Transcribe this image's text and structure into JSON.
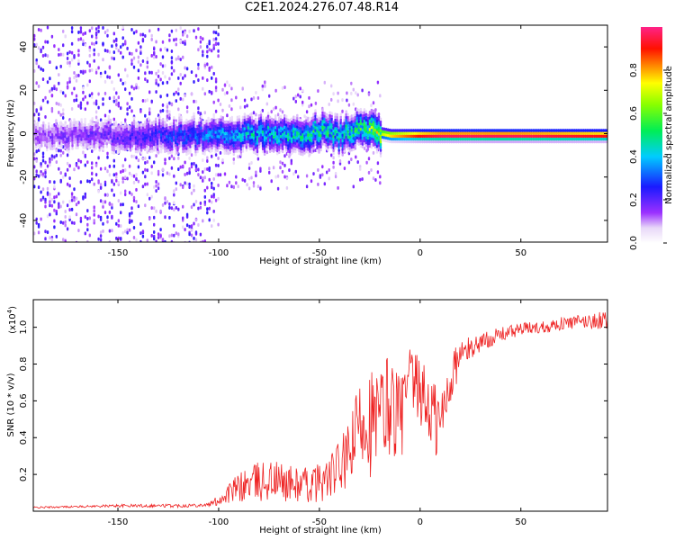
{
  "title": "C2E1.2024.276.07.48.R14",
  "colors": {
    "signal_line": "#ee2222",
    "frame": "#000000"
  },
  "chart_data": [
    {
      "type": "heatmap",
      "title": "C2E1.2024.276.07.48.R14",
      "xlabel": "Height of straight line (km)",
      "ylabel": "Frequency (Hz)",
      "xlim": [
        -192,
        93
      ],
      "ylim": [
        -50,
        50
      ],
      "x_ticks": [
        -150,
        -100,
        -50,
        0,
        50
      ],
      "y_ticks": [
        -40,
        -20,
        0,
        20,
        40
      ],
      "colorbar": {
        "label": "Normalized spectral amplitude",
        "range": [
          0,
          1
        ],
        "ticks": [
          "0.0",
          "0.2",
          "0.4",
          "0.6",
          "0.8"
        ],
        "colormap": "rainbow (white-violet-blue-cyan-green-yellow-red-pink)"
      },
      "ridge": {
        "description": "Dominant spectral line near 0 Hz; scattered noise for heights below -100 km, coherent line above -20 km",
        "x": [
          -190,
          -150,
          -100,
          -80,
          -60,
          -50,
          -40,
          -30,
          -20,
          -15,
          -10,
          -5,
          0,
          10,
          20,
          50,
          90
        ],
        "freq": [
          0,
          0,
          0,
          1,
          0,
          2,
          0,
          4,
          1,
          0,
          0,
          0,
          0,
          0,
          0,
          0,
          0
        ],
        "amplitude": [
          0.15,
          0.2,
          0.35,
          0.45,
          0.45,
          0.5,
          0.45,
          0.55,
          0.7,
          0.8,
          0.85,
          0.9,
          0.95,
          1.0,
          1.0,
          1.0,
          0.95
        ]
      }
    },
    {
      "type": "line",
      "xlabel": "Height of straight line (km)",
      "ylabel": "SNR (10 * v/v)",
      "scale_label_base": "(x10",
      "scale_label_exp": "4",
      "scale_label_close": ")",
      "xlim": [
        -192,
        93
      ],
      "ylim": [
        0,
        1.15
      ],
      "x_ticks": [
        -150,
        -100,
        -50,
        0,
        50
      ],
      "y_ticks": [
        "0.2",
        "0.4",
        "0.6",
        "0.8",
        "1.0"
      ],
      "series": [
        {
          "name": "SNR",
          "x": [
            -192,
            -170,
            -150,
            -120,
            -105,
            -100,
            -95,
            -85,
            -75,
            -65,
            -55,
            -45,
            -35,
            -28,
            -22,
            -15,
            -10,
            -5,
            0,
            5,
            10,
            15,
            20,
            30,
            40,
            50,
            60,
            70,
            80,
            93
          ],
          "values": [
            0.02,
            0.025,
            0.03,
            0.03,
            0.035,
            0.06,
            0.1,
            0.15,
            0.17,
            0.15,
            0.14,
            0.18,
            0.3,
            0.55,
            0.45,
            0.6,
            0.5,
            0.7,
            0.65,
            0.55,
            0.45,
            0.72,
            0.85,
            0.92,
            0.96,
            0.99,
            1.0,
            1.02,
            1.03,
            1.04
          ],
          "noise": [
            0.005,
            0.005,
            0.008,
            0.01,
            0.01,
            0.03,
            0.06,
            0.1,
            0.12,
            0.1,
            0.1,
            0.12,
            0.18,
            0.3,
            0.32,
            0.3,
            0.25,
            0.2,
            0.18,
            0.22,
            0.25,
            0.15,
            0.08,
            0.05,
            0.04,
            0.035,
            0.035,
            0.035,
            0.04,
            0.05
          ]
        }
      ]
    }
  ]
}
